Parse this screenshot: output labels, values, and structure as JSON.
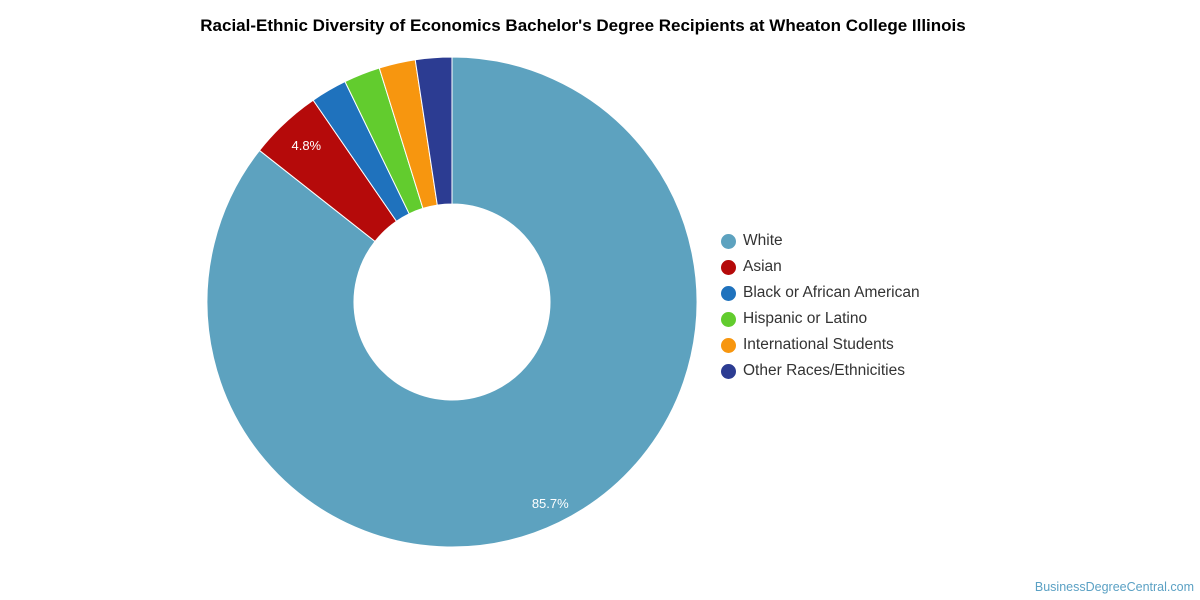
{
  "title": "Racial-Ethnic Diversity of Economics Bachelor's Degree Recipients at Wheaton College Illinois",
  "credit": "BusinessDegreeCentral.com",
  "chart_data": {
    "type": "pie",
    "donut": true,
    "legend_position": "right",
    "slices": [
      {
        "label": "White",
        "value": 85.7,
        "color": "#5da2bf",
        "data_label": "85.7%"
      },
      {
        "label": "Asian",
        "value": 4.8,
        "color": "#b50a0a",
        "data_label": "4.8%"
      },
      {
        "label": "Black or African American",
        "value": 2.4,
        "color": "#1f72bd",
        "data_label": ""
      },
      {
        "label": "Hispanic or Latino",
        "value": 2.4,
        "color": "#62cc2e",
        "data_label": ""
      },
      {
        "label": "International Students",
        "value": 2.4,
        "color": "#f7960f",
        "data_label": ""
      },
      {
        "label": "Other Races/Ethnicities",
        "value": 2.4,
        "color": "#2c3c92",
        "data_label": ""
      }
    ]
  }
}
